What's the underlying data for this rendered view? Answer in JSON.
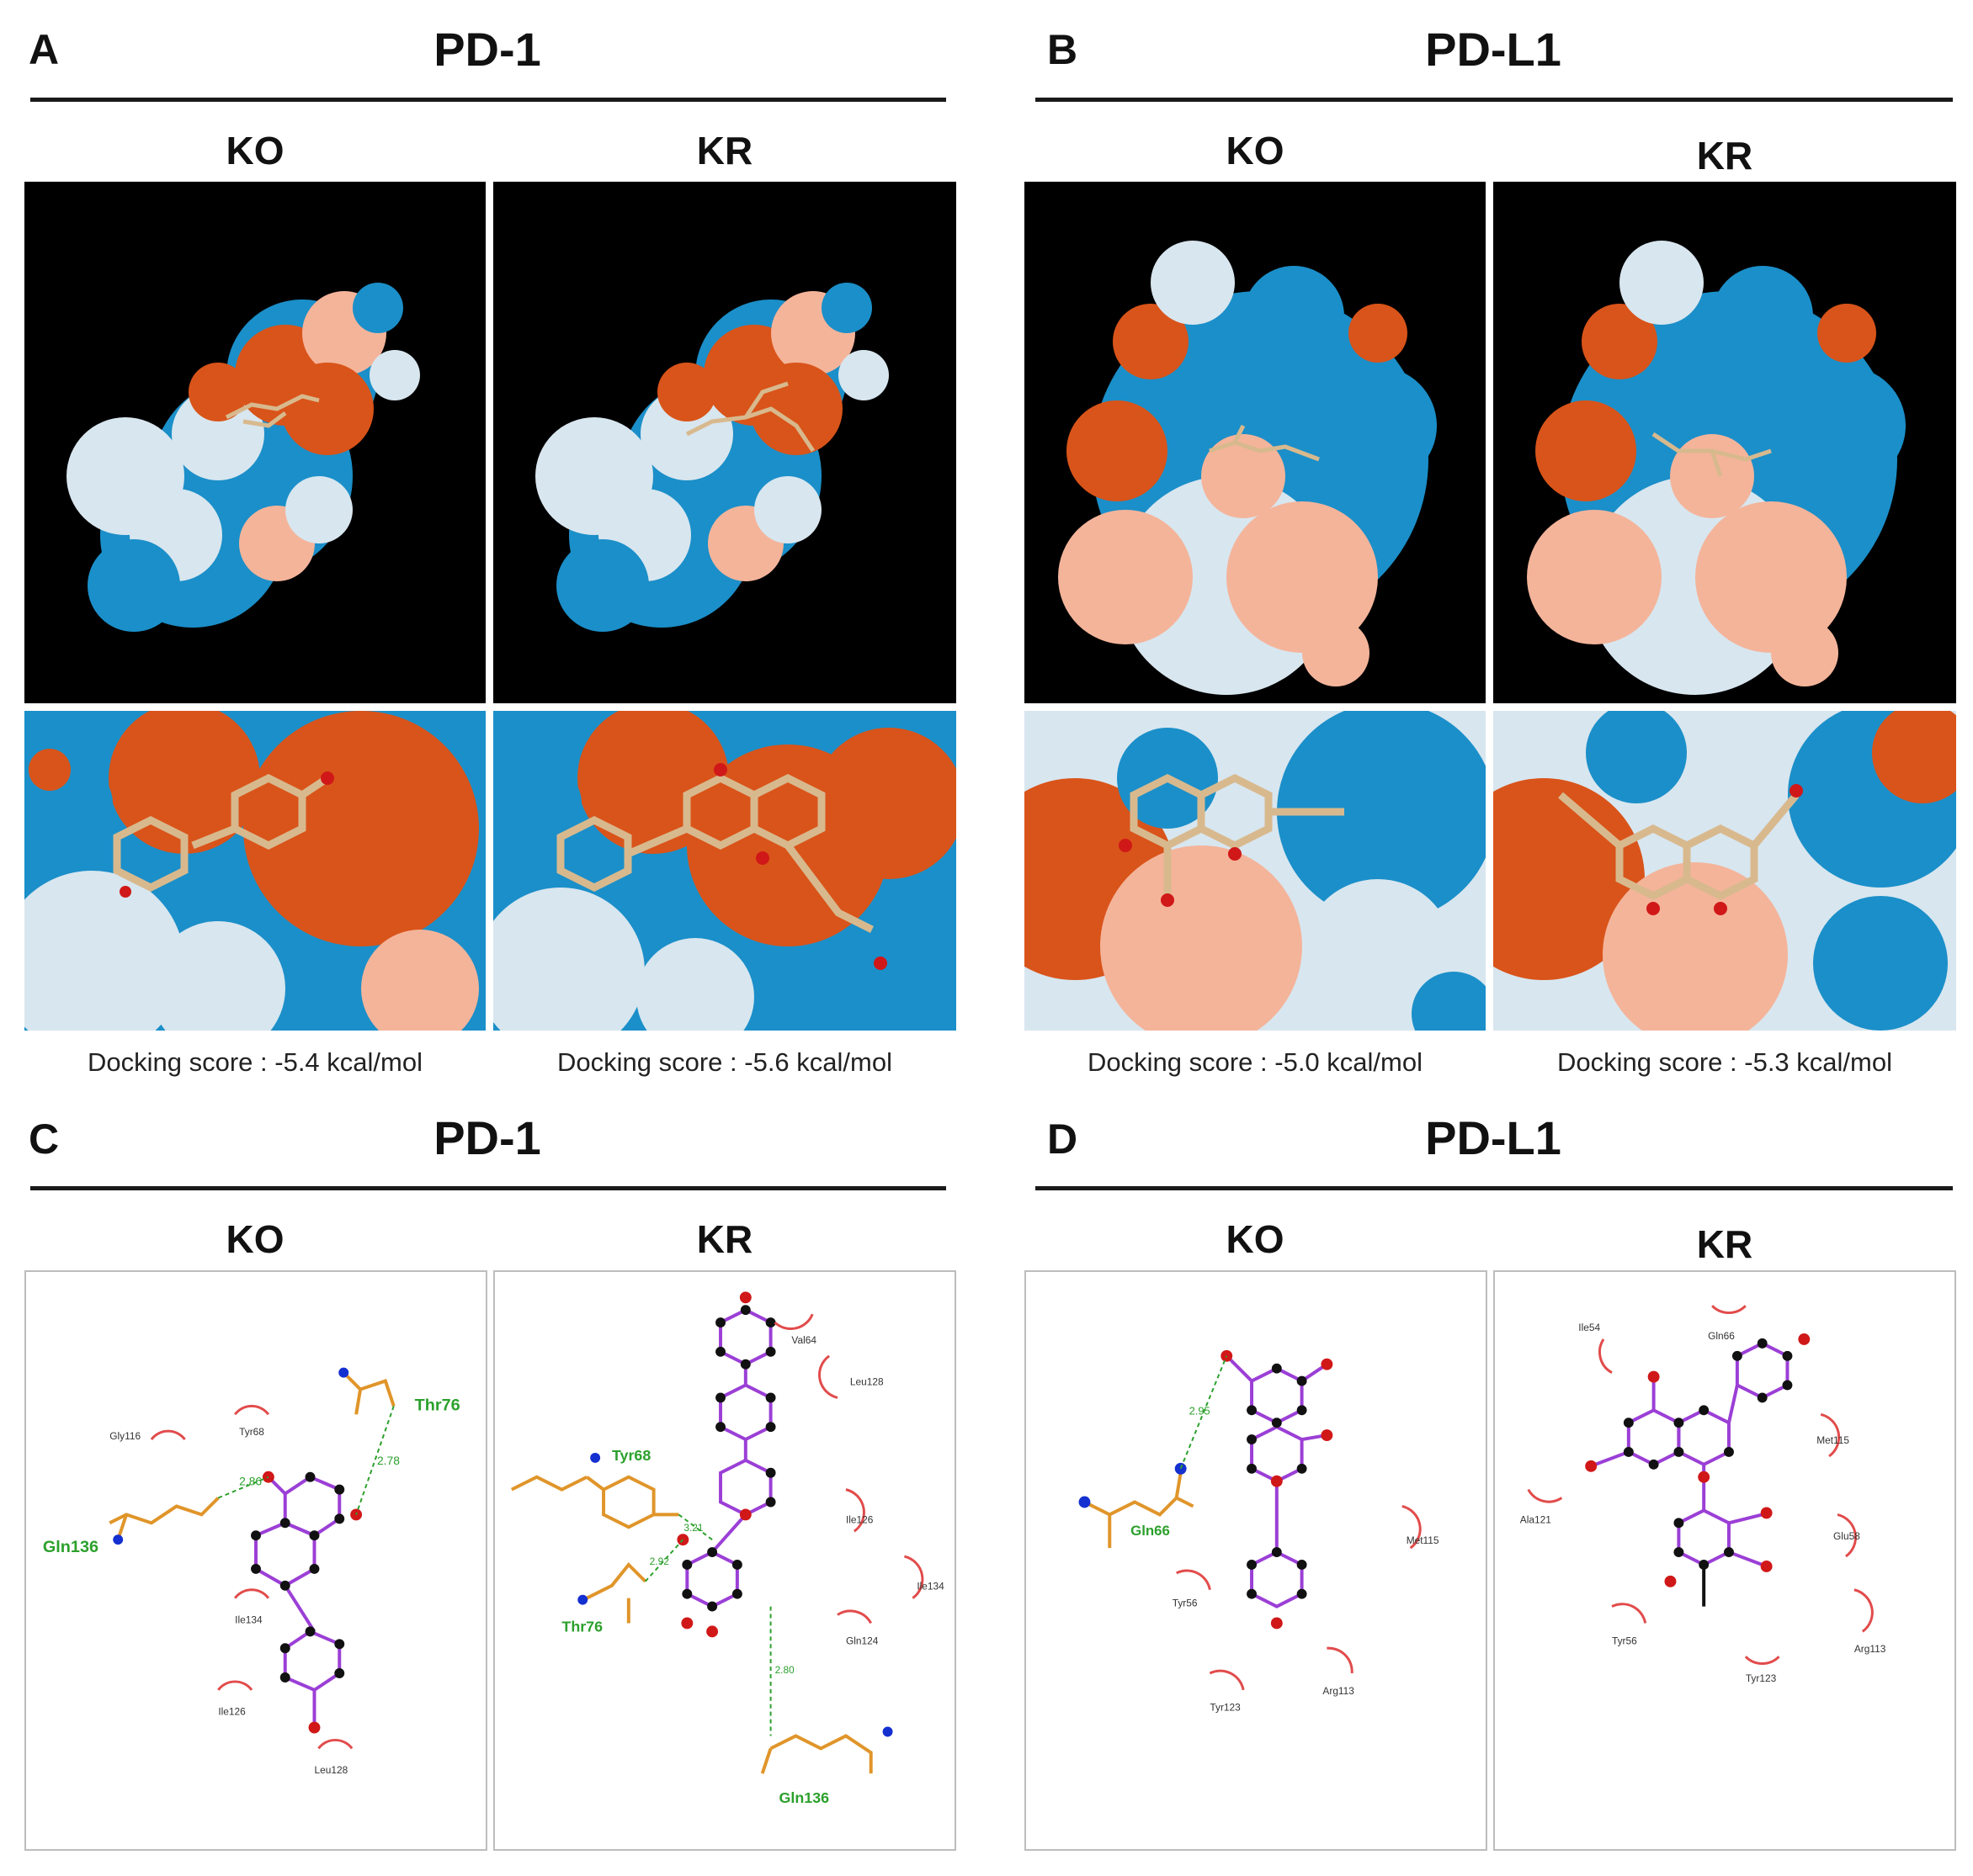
{
  "figure": {
    "panels": [
      {
        "letter": "A",
        "title": "PD-1",
        "subtitles": [
          "KO",
          "KR"
        ],
        "scores": [
          "Docking score : -5.4 kcal/mol",
          "Docking score : -5.6 kcal/mol"
        ]
      },
      {
        "letter": "B",
        "title": "PD-L1",
        "subtitles": [
          "KO",
          "KR"
        ],
        "scores": [
          "Docking score : -5.0 kcal/mol",
          "Docking score : -5.3 kcal/mol"
        ]
      },
      {
        "letter": "C",
        "title": "PD-1",
        "subtitles": [
          "KO",
          "KR"
        ]
      },
      {
        "letter": "D",
        "title": "PD-L1",
        "subtitles": [
          "KO",
          "KR"
        ]
      }
    ],
    "colors": {
      "hydrophobic": "#d9541a",
      "mid": "#f4b49a",
      "neutral": "#d8e6ef",
      "hydrophilic": "#1b8fc9",
      "ligand": "#d8b98e",
      "hbond": "#2ca02c",
      "contact": "#e24b4b",
      "carbon": "#111111",
      "oxygen": "#d01818",
      "nitrogen": "#1530d0",
      "ring_bond": "#9b3fd6",
      "chain_bond": "#e0952a"
    },
    "interactions": {
      "C_KO": {
        "hbond_residues": [
          "Gln136",
          "Thr76"
        ],
        "contacts": [
          "Gly116",
          "Tyr68",
          "Ile134",
          "Ile126",
          "Leu128"
        ],
        "hbond_distances": [
          "2.86",
          "2.78"
        ]
      },
      "C_KR": {
        "hbond_residues": [
          "Tyr68",
          "Thr76",
          "Gln136"
        ],
        "contacts": [
          "Val64",
          "Leu128",
          "Ile126",
          "Ile134",
          "Gln124"
        ],
        "hbond_distances": [
          "3.21",
          "2.92",
          "2.80"
        ]
      },
      "D_KO": {
        "hbond_residues": [
          "Gln66"
        ],
        "contacts": [
          "Met115",
          "Tyr56",
          "Tyr123",
          "Arg113"
        ],
        "hbond_distances": [
          "2.95"
        ]
      },
      "D_KR": {
        "contacts": [
          "Gln66",
          "Ile54",
          "Met115",
          "Ala121",
          "Glu58",
          "Tyr56",
          "Arg113",
          "Tyr123"
        ]
      }
    }
  }
}
